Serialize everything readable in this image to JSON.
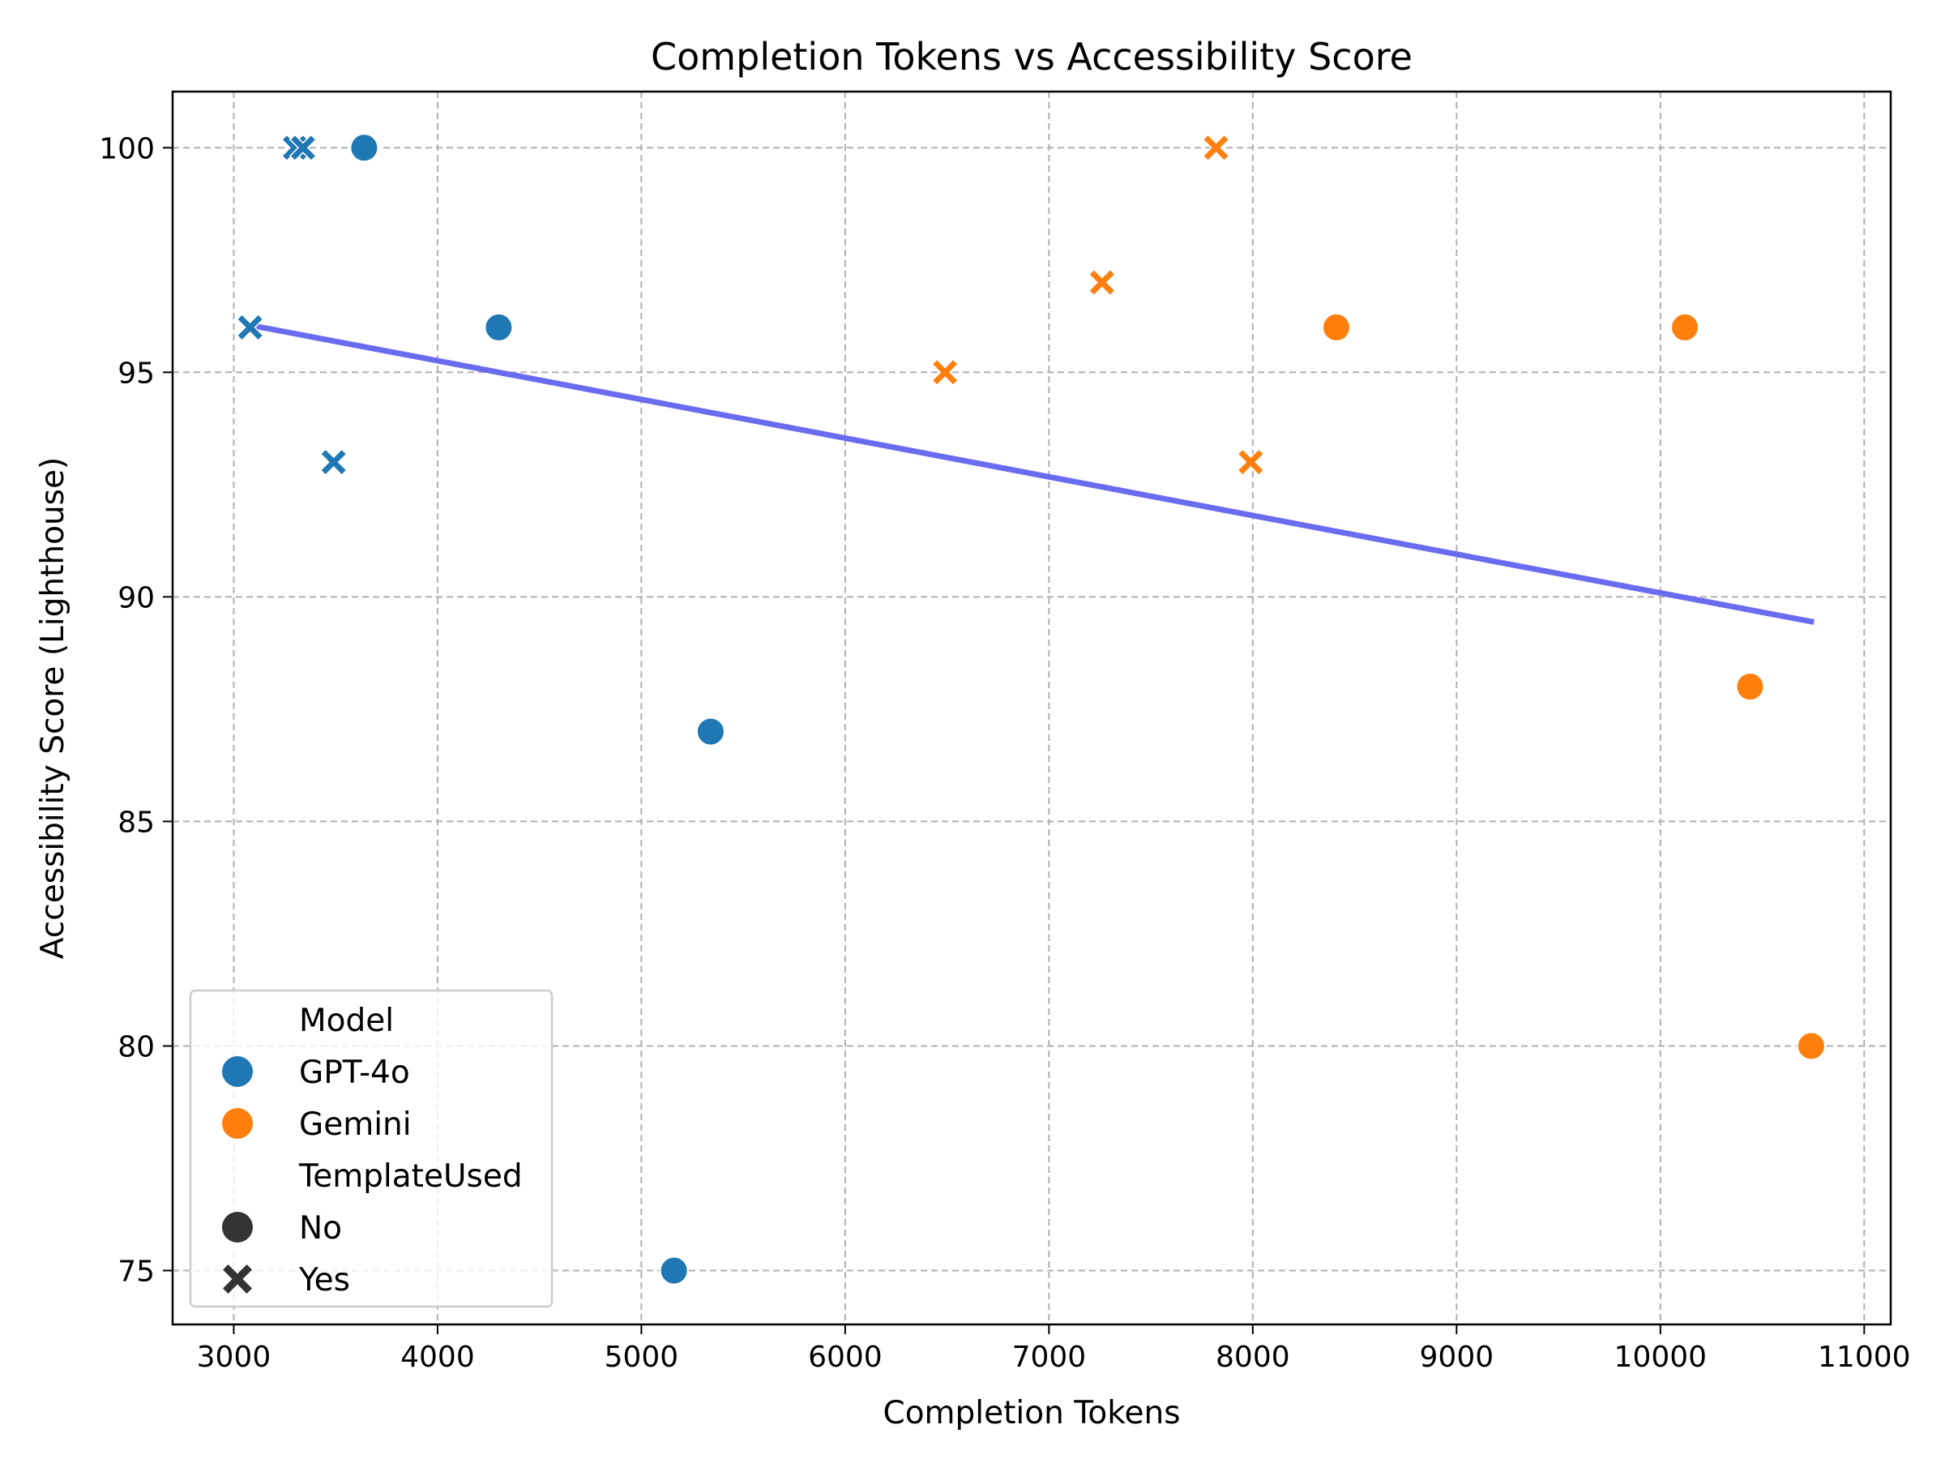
{
  "chart_data": {
    "type": "scatter",
    "title": "Completion Tokens vs Accessibility Score",
    "xlabel": "Completion Tokens",
    "ylabel": "Accessibility Score (Lighthouse)",
    "xlim": [
      2700,
      11130
    ],
    "ylim": [
      73.8,
      101.25
    ],
    "xticks": [
      3000,
      4000,
      5000,
      6000,
      7000,
      8000,
      9000,
      10000,
      11000
    ],
    "yticks": [
      75,
      80,
      85,
      90,
      95,
      100
    ],
    "grid": true,
    "legend_position": "lower-left",
    "legend": {
      "hue_title": "Model",
      "style_title": "TemplateUsed",
      "entries": [
        {
          "label": "GPT-4o",
          "kind": "color",
          "color": "#1f77b4"
        },
        {
          "label": "Gemini",
          "kind": "color",
          "color": "#ff7f0e"
        },
        {
          "label": "No",
          "kind": "marker",
          "marker": "circle"
        },
        {
          "label": "Yes",
          "kind": "marker",
          "marker": "x"
        }
      ]
    },
    "series": [
      {
        "name": "GPT-4o",
        "color": "#1f77b4",
        "points": [
          {
            "x": 3300,
            "y": 100,
            "template": "Yes"
          },
          {
            "x": 3340,
            "y": 100,
            "template": "Yes"
          },
          {
            "x": 3640,
            "y": 100,
            "template": "No"
          },
          {
            "x": 3080,
            "y": 96,
            "template": "Yes"
          },
          {
            "x": 4300,
            "y": 96,
            "template": "No"
          },
          {
            "x": 3490,
            "y": 93,
            "template": "Yes"
          },
          {
            "x": 5340,
            "y": 87,
            "template": "No"
          },
          {
            "x": 5160,
            "y": 75,
            "template": "No"
          }
        ]
      },
      {
        "name": "Gemini",
        "color": "#ff7f0e",
        "points": [
          {
            "x": 7820,
            "y": 100,
            "template": "Yes"
          },
          {
            "x": 7260,
            "y": 97,
            "template": "Yes"
          },
          {
            "x": 6490,
            "y": 95,
            "template": "Yes"
          },
          {
            "x": 8410,
            "y": 96,
            "template": "No"
          },
          {
            "x": 10120,
            "y": 96,
            "template": "No"
          },
          {
            "x": 7990,
            "y": 93,
            "template": "Yes"
          },
          {
            "x": 10440,
            "y": 88,
            "template": "No"
          },
          {
            "x": 10740,
            "y": 80,
            "template": "No"
          }
        ]
      }
    ],
    "trendline": {
      "color": "#6b6bef",
      "x": [
        3080,
        10740
      ],
      "y": [
        96.05,
        89.45
      ]
    }
  }
}
